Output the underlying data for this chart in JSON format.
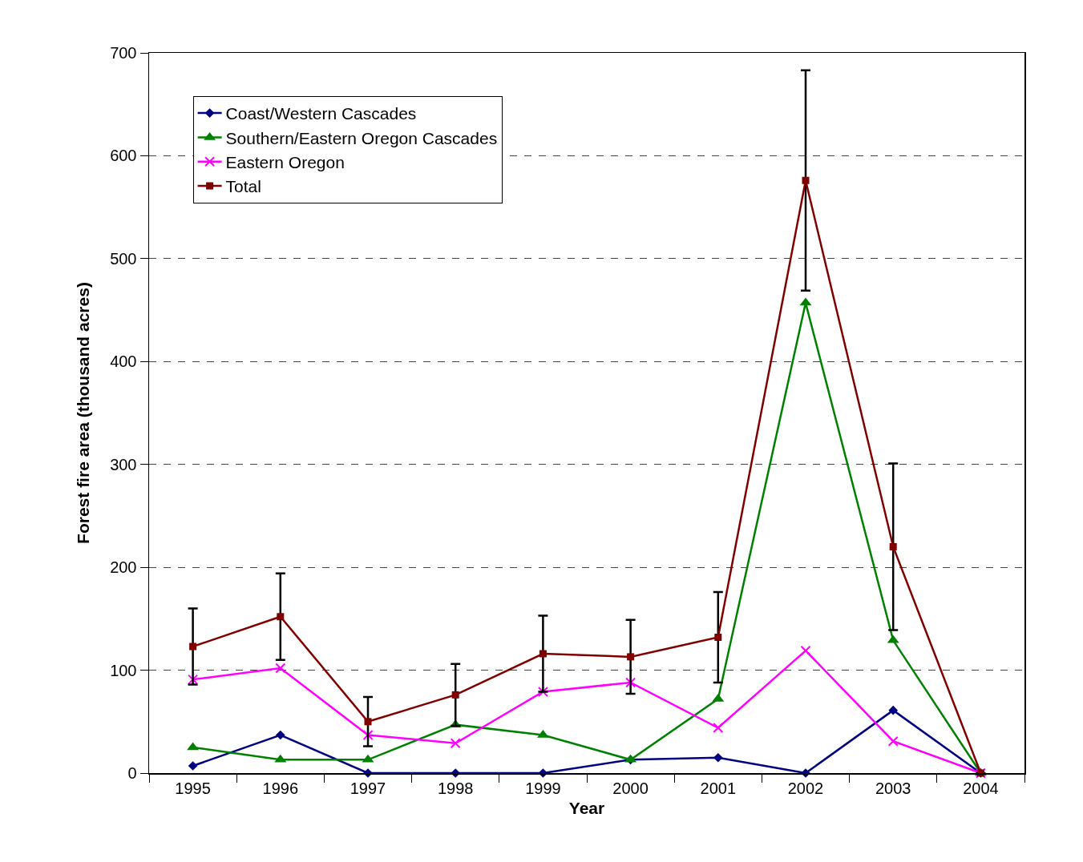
{
  "chart_data": {
    "type": "line",
    "xlabel": "Year",
    "ylabel": "Forest fire area (thousand acres)",
    "categories": [
      "1995",
      "1996",
      "1997",
      "1998",
      "1999",
      "2000",
      "2001",
      "2002",
      "2003",
      "2004"
    ],
    "series": [
      {
        "name": "Coast/Western Cascades",
        "color": "#000080",
        "marker": "diamond",
        "values": [
          7,
          37,
          0,
          0,
          0,
          13,
          15,
          0,
          61,
          0
        ]
      },
      {
        "name": "Southern/Eastern Oregon Cascades",
        "color": "#008000",
        "marker": "triangle",
        "values": [
          25,
          13,
          13,
          47,
          37,
          13,
          72,
          457,
          129,
          0
        ]
      },
      {
        "name": "Eastern Oregon",
        "color": "#ff00ff",
        "marker": "cross",
        "values": [
          91,
          102,
          37,
          29,
          79,
          88,
          44,
          119,
          31,
          0
        ]
      },
      {
        "name": "Total",
        "color": "#800000",
        "marker": "square",
        "values": [
          123,
          152,
          50,
          76,
          116,
          113,
          132,
          576,
          220,
          0
        ],
        "errors": [
          37,
          42,
          24,
          30,
          37,
          36,
          44,
          107,
          81,
          null
        ]
      }
    ],
    "ylim": [
      0,
      700
    ],
    "yticks": [
      0,
      100,
      200,
      300,
      400,
      500,
      600,
      700
    ],
    "grid": "y",
    "legend": "top left",
    "line_style": "solid"
  }
}
